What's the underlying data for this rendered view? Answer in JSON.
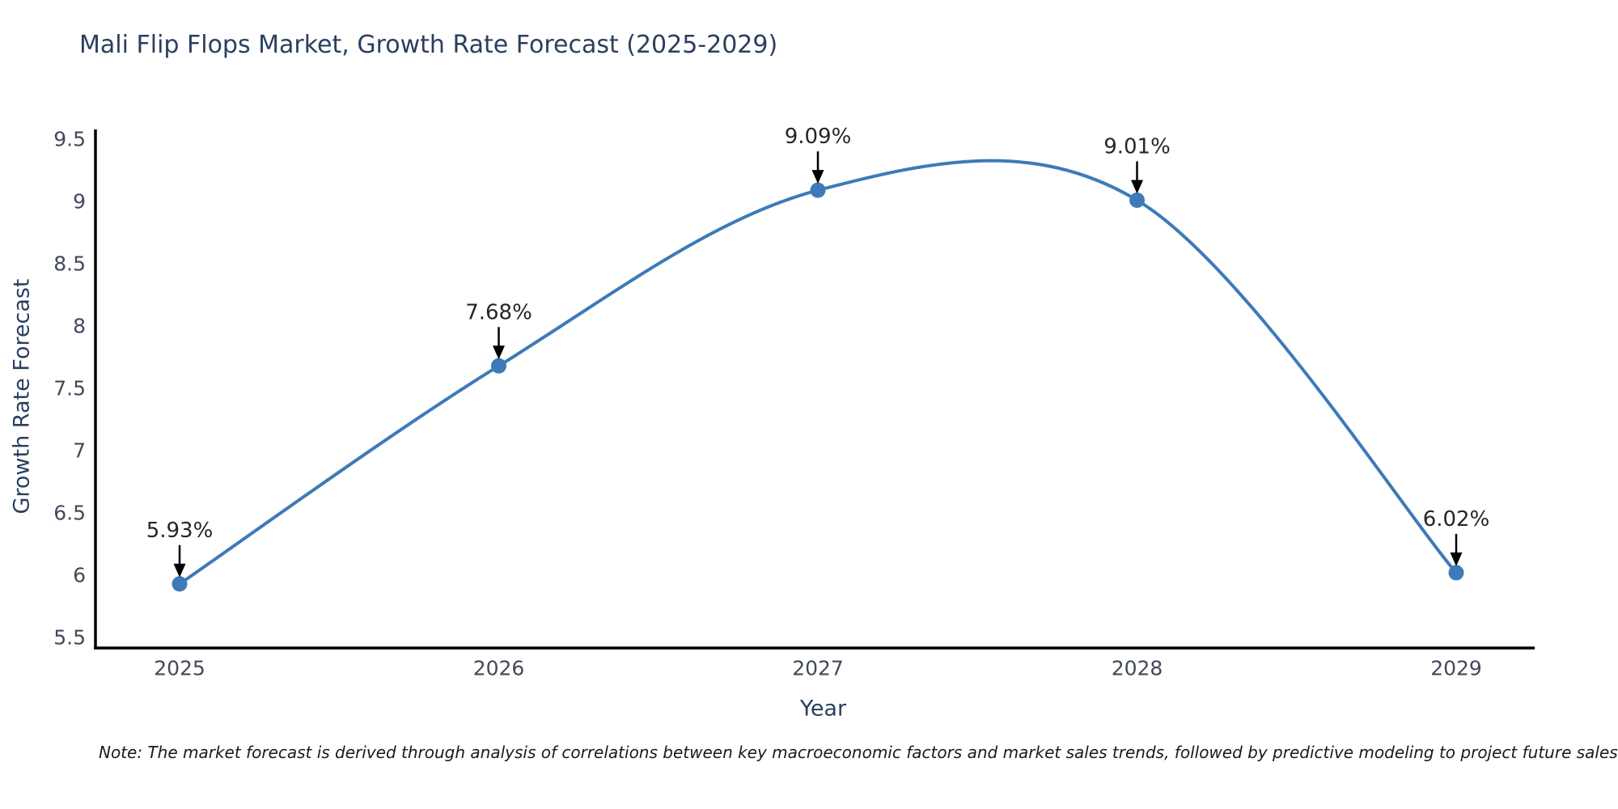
{
  "header": {
    "title": "Mali Flip Flops Market, Growth Rate Forecast (2025-2029)"
  },
  "chart_data": {
    "type": "line",
    "title": "Mali Flip Flops Market, Growth Rate Forecast (2025-2029)",
    "xlabel": "Year",
    "ylabel": "Growth Rate Forecast",
    "categories": [
      "2025",
      "2026",
      "2027",
      "2028",
      "2029"
    ],
    "values": [
      5.93,
      7.68,
      9.09,
      9.01,
      6.02
    ],
    "point_labels": [
      "5.93%",
      "7.68%",
      "9.09%",
      "9.01%",
      "6.02%"
    ],
    "y_ticks": [
      5.5,
      6,
      6.5,
      7,
      7.5,
      8,
      8.5,
      9,
      9.5
    ],
    "ylim": [
      5.5,
      9.5
    ],
    "line_shape": "spline",
    "grid": false,
    "legend": false,
    "colors": {
      "line": "#3d7ab8",
      "marker": "#3d7ab8",
      "axis": "#000000",
      "axis_title_text": "#2a3f5f",
      "tick_text": "#42495b",
      "annotation_text": "#262626",
      "annotation_arrow": "#000000"
    }
  },
  "footnote": {
    "text": "Note: The market forecast is derived through analysis of correlations between key macroeconomic factors and market sales trends, followed by predictive modeling to project future sales"
  }
}
